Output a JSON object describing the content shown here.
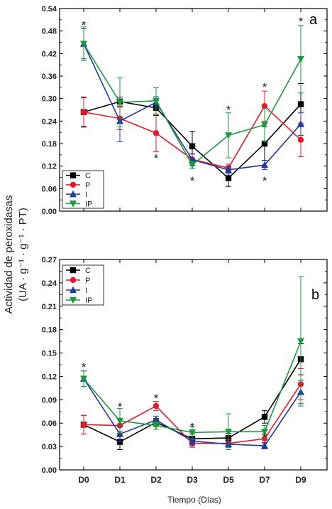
{
  "figure": {
    "ylabel_line1": "Actividad de peroxidasas",
    "ylabel_line2": "(UA · g⁻¹ · g⁻¹ · PT)",
    "xlabel": "Tiempo (Días)"
  },
  "colors": {
    "C": "#000000",
    "P": "#e8192c",
    "I": "#1f3a9a",
    "IP": "#1a9a3a"
  },
  "chart_data": [
    {
      "type": "line",
      "panel_label": "a",
      "categories": [
        "D0",
        "D1",
        "D2",
        "D3",
        "D5",
        "D7",
        "D9"
      ],
      "ylim": [
        0,
        0.54
      ],
      "yticks": [
        "0.00",
        "0.06",
        "0.12",
        "0.18",
        "0.24",
        "0.30",
        "0.36",
        "0.42",
        "0.48",
        "0.54"
      ],
      "grid": false,
      "legend_position": "bottom-left",
      "series": [
        {
          "name": "C",
          "marker": "square",
          "values": [
            0.264,
            0.292,
            0.275,
            0.173,
            0.088,
            0.18,
            0.285
          ],
          "errors": [
            0.04,
            0.012,
            0.02,
            0.04,
            0.022,
            0.045,
            0.055
          ]
        },
        {
          "name": "P",
          "marker": "circle",
          "values": [
            0.264,
            0.247,
            0.208,
            0.138,
            0.115,
            0.28,
            0.19
          ],
          "errors": [
            0.038,
            0.03,
            0.05,
            0.015,
            0.01,
            0.04,
            0.045
          ]
        },
        {
          "name": "I",
          "marker": "triangle-up",
          "values": [
            0.446,
            0.24,
            0.29,
            0.137,
            0.11,
            0.123,
            0.232
          ],
          "errors": [
            0.04,
            0.055,
            0.015,
            0.015,
            0.01,
            0.012,
            0.03
          ]
        },
        {
          "name": "IP",
          "marker": "triangle-down",
          "values": [
            0.446,
            0.29,
            0.294,
            0.123,
            0.202,
            0.23,
            0.405
          ],
          "errors": [
            0.045,
            0.065,
            0.035,
            0.01,
            0.06,
            0.045,
            0.09
          ]
        }
      ],
      "annotations": [
        {
          "text": "*",
          "x": "D0",
          "y": 0.5
        },
        {
          "text": "*",
          "x": "D2",
          "y": 0.145
        },
        {
          "text": "*",
          "x": "D3",
          "y": 0.085
        },
        {
          "text": "*",
          "x": "D5",
          "y": 0.275
        },
        {
          "text": "*",
          "x": "D7",
          "y": 0.335
        },
        {
          "text": "*",
          "x": "D7",
          "y": 0.085
        },
        {
          "text": "*",
          "x": "D9",
          "y": 0.51
        }
      ]
    },
    {
      "type": "line",
      "panel_label": "b",
      "categories": [
        "D0",
        "D1",
        "D2",
        "D3",
        "D5",
        "D7",
        "D9"
      ],
      "ylim": [
        0,
        0.27
      ],
      "yticks": [
        "0.00",
        "0.03",
        "0.06",
        "0.09",
        "0.12",
        "0.15",
        "0.18",
        "0.21",
        "0.24",
        "0.27"
      ],
      "grid": false,
      "legend_position": "top-left",
      "series": [
        {
          "name": "C",
          "marker": "square",
          "values": [
            0.058,
            0.036,
            0.061,
            0.04,
            0.041,
            0.068,
            0.142
          ],
          "errors": [
            0.012,
            0.01,
            0.005,
            0.006,
            0.006,
            0.008,
            0.02
          ]
        },
        {
          "name": "P",
          "marker": "circle",
          "values": [
            0.058,
            0.057,
            0.082,
            0.034,
            0.034,
            0.04,
            0.11
          ],
          "errors": [
            0.012,
            0.008,
            0.006,
            0.005,
            0.005,
            0.006,
            0.02
          ]
        },
        {
          "name": "I",
          "marker": "triangle-up",
          "values": [
            0.117,
            0.046,
            0.064,
            0.037,
            0.033,
            0.031,
            0.1
          ],
          "errors": [
            0.01,
            0.01,
            0.005,
            0.006,
            0.004,
            0.004,
            0.015
          ]
        },
        {
          "name": "IP",
          "marker": "triangle-down",
          "values": [
            0.117,
            0.063,
            0.057,
            0.048,
            0.049,
            0.049,
            0.165
          ],
          "errors": [
            0.01,
            0.016,
            0.005,
            0.008,
            0.023,
            0.008,
            0.083
          ]
        }
      ],
      "annotations": [
        {
          "text": "*",
          "x": "D0",
          "y": 0.134
        },
        {
          "text": "*",
          "x": "D1",
          "y": 0.083
        },
        {
          "text": "*",
          "x": "D2",
          "y": 0.094
        },
        {
          "text": "*",
          "x": "D3",
          "y": 0.057
        },
        {
          "text": "*",
          "x": "D7",
          "y": 0.044
        }
      ]
    }
  ]
}
